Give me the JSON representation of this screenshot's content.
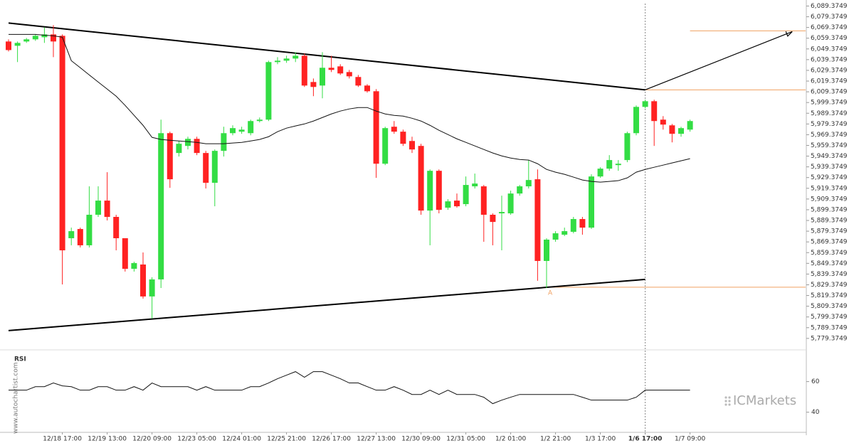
{
  "chart_data": {
    "type": "candlestick",
    "categories": [
      null,
      null,
      null,
      null,
      null,
      null,
      "12/18 17:00",
      null,
      null,
      null,
      null,
      "12/19 13:00",
      null,
      null,
      null,
      null,
      "12/20 09:00",
      null,
      null,
      null,
      null,
      "12/23 05:00",
      null,
      null,
      null,
      null,
      "12/24 01:00",
      null,
      null,
      null,
      null,
      "12/25 21:00",
      null,
      null,
      null,
      null,
      "12/26 17:00",
      null,
      null,
      null,
      null,
      "12/27 13:00",
      null,
      null,
      null,
      null,
      "12/30 09:00",
      null,
      null,
      null,
      null,
      "12/31 05:00",
      null,
      null,
      null,
      null,
      "1/2 01:00",
      null,
      null,
      null,
      null,
      "1/2 21:00",
      null,
      null,
      null,
      null,
      "1/3 17:00",
      null,
      null,
      null,
      null,
      "1/6 17:00",
      null,
      null,
      null,
      null,
      "1/7 09:00"
    ],
    "open": [
      6056.3,
      6052.3,
      6056.3,
      6058.3,
      6060.3,
      6062.9,
      6061.6,
      5872.8,
      5881.4,
      5866.2,
      5894.7,
      5907.9,
      5892.7,
      5872.8,
      5844.3,
      5848.3,
      5818.5,
      5834.4,
      5970.8,
      5952.3,
      5958.9,
      5965.5,
      5952.3,
      5924.5,
      5954.3,
      5970.8,
      5972.2,
      5970.8,
      5982.1,
      5983.4,
      6037.1,
      6038.4,
      6040.4,
      6043.0,
      6018.5,
      6015.2,
      6031.8,
      6033.1,
      6027.8,
      6023.2,
      6015.2,
      6009.9,
      5942.3,
      5976.8,
      5972.2,
      5963.5,
      5958.9,
      5898.6,
      5935.7,
      5901.3,
      5907.9,
      5904.6,
      5921.2,
      5921.2,
      5894.7,
      5896.0,
      5896.0,
      5914.5,
      5921.2,
      5927.8,
      5851.6,
      5871.5,
      5876.1,
      5878.8,
      5890.7,
      5882.7,
      5930.4,
      5937.7,
      5941.0,
      5945.7,
      5970.8,
      5995.3,
      6000.6,
      5983.4,
      5978.1,
      5970.2,
      5974.1
    ],
    "high": [
      6058.3,
      6056.3,
      6059.6,
      6062.9,
      6069.5,
      6071.5,
      6062.9,
      5882.7,
      5882.7,
      5921.2,
      5921.2,
      5934.4,
      5894.7,
      5872.8,
      5850.9,
      5859.5,
      5836.4,
      5983.4,
      5972.2,
      5963.5,
      5967.5,
      5967.5,
      5954.3,
      5955.6,
      5976.8,
      5978.1,
      5976.8,
      5983.4,
      5985.4,
      6038.4,
      6041.7,
      6043.0,
      6046.3,
      6045.0,
      6021.8,
      6046.3,
      6043.0,
      6035.1,
      6029.8,
      6025.1,
      6016.5,
      6011.9,
      5976.8,
      5982.1,
      5974.1,
      5967.5,
      5960.9,
      5937.0,
      5937.0,
      5909.2,
      5914.5,
      5930.4,
      5933.1,
      5922.5,
      5896.0,
      5912.5,
      5917.2,
      5922.5,
      5945.7,
      5937.0,
      5872.8,
      5879.4,
      5882.7,
      5892.7,
      5892.7,
      5932.4,
      5939.0,
      5950.3,
      5945.7,
      5972.2,
      5996.7,
      6002.0,
      6002.0,
      5986.7,
      5979.4,
      5976.8,
      5983.4
    ],
    "low": [
      6047.0,
      6037.1,
      6055.0,
      6056.9,
      6055.0,
      6041.7,
      5829.7,
      5866.2,
      5864.2,
      5864.2,
      5892.7,
      5889.4,
      5861.5,
      5841.7,
      5841.7,
      5816.5,
      5797.9,
      5826.4,
      5919.8,
      5949.0,
      5955.6,
      5950.3,
      5919.2,
      5902.6,
      5949.0,
      5968.8,
      5970.2,
      5968.8,
      5980.8,
      5982.1,
      6035.1,
      6036.4,
      6037.1,
      6013.9,
      6005.3,
      6003.3,
      6027.8,
      6025.1,
      6021.8,
      6013.9,
      6008.6,
      5929.1,
      5941.0,
      5970.2,
      5958.9,
      5952.3,
      5894.7,
      5866.2,
      5896.0,
      5899.3,
      5901.3,
      5902.6,
      5919.2,
      5869.5,
      5866.2,
      5861.5,
      5894.7,
      5912.5,
      5919.2,
      5833.1,
      5826.4,
      5869.5,
      5874.8,
      5877.4,
      5876.1,
      5881.4,
      5929.1,
      5935.7,
      5935.7,
      5943.7,
      5968.8,
      5994.0,
      5958.9,
      5974.1,
      5962.2,
      5967.5,
      5972.2
    ],
    "close": [
      6048.3,
      6055.0,
      6058.3,
      6061.6,
      6062.9,
      6056.3,
      5861.5,
      5879.4,
      5866.2,
      5894.7,
      5907.9,
      5892.7,
      5872.8,
      5844.3,
      5849.6,
      5818.5,
      5834.4,
      5970.8,
      5927.8,
      5960.9,
      5965.5,
      5952.3,
      5924.5,
      5954.3,
      5970.8,
      5975.5,
      5974.1,
      5982.1,
      5983.4,
      6037.1,
      6038.4,
      6040.4,
      6043.0,
      6015.2,
      6013.9,
      6031.8,
      6029.8,
      6026.5,
      6023.8,
      6015.2,
      6009.9,
      5942.3,
      5975.5,
      5972.2,
      5960.9,
      5955.6,
      5898.6,
      5935.7,
      5899.3,
      5907.2,
      5902.6,
      5922.5,
      5923.8,
      5894.7,
      5888.0,
      5897.3,
      5914.5,
      5921.2,
      5927.1,
      5851.6,
      5871.5,
      5877.4,
      5879.4,
      5890.7,
      5882.7,
      5930.4,
      5937.7,
      5945.7,
      5942.3,
      5970.8,
      5995.3,
      6000.6,
      5982.1,
      5978.8,
      5970.2,
      5975.5,
      5982.1
    ],
    "up_color": "#33dd44",
    "down_color": "#ff2222",
    "ma": {
      "color": "#111111",
      "values": [
        6062.9,
        6062.9,
        6062.9,
        6062.9,
        6062.2,
        6061.6,
        6060.3,
        6038.4,
        6031.8,
        6025.1,
        6018.5,
        6011.9,
        6005.3,
        5996.7,
        5987.4,
        5978.1,
        5966.9,
        5964.9,
        5964.2,
        5963.5,
        5962.9,
        5962.2,
        5960.9,
        5960.9,
        5960.9,
        5961.6,
        5962.2,
        5963.5,
        5964.9,
        5967.5,
        5972.2,
        5975.5,
        5977.5,
        5979.4,
        5982.1,
        5985.4,
        5988.7,
        5991.4,
        5993.4,
        5994.7,
        5994.7,
        5991.4,
        5988.7,
        5987.4,
        5986.7,
        5984.7,
        5982.1,
        5978.1,
        5973.5,
        5969.5,
        5965.5,
        5962.2,
        5958.9,
        5955.6,
        5952.3,
        5949.6,
        5947.6,
        5946.3,
        5945.7,
        5942.3,
        5937.0,
        5934.4,
        5932.4,
        5929.8,
        5927.1,
        5925.8,
        5925.1,
        5925.8,
        5926.5,
        5929.1,
        5934.4,
        5937.0,
        5939.0,
        5941.0,
        5943.0,
        5945.0,
        5947.0
      ]
    },
    "ylim": [
      5770,
      6095
    ],
    "yticks": [
      {
        "value": 6089.3749,
        "label": "6,089.3749"
      },
      {
        "value": 6079.3749,
        "label": "6,079.3749"
      },
      {
        "value": 6069.3749,
        "label": "6,069.3749"
      },
      {
        "value": 6059.3749,
        "label": "6,059.3749"
      },
      {
        "value": 6049.3749,
        "label": "6,049.3749"
      },
      {
        "value": 6039.3749,
        "label": "6,039.3749"
      },
      {
        "value": 6029.3749,
        "label": "6,029.3749"
      },
      {
        "value": 6019.3749,
        "label": "6,019.3749"
      },
      {
        "value": 6009.3749,
        "label": "6,009.3749"
      },
      {
        "value": 5999.3749,
        "label": "5,999.3749"
      },
      {
        "value": 5989.3749,
        "label": "5,989.3749"
      },
      {
        "value": 5979.3749,
        "label": "5,979.3749"
      },
      {
        "value": 5969.3749,
        "label": "5,969.3749"
      },
      {
        "value": 5959.3749,
        "label": "5,959.3749"
      },
      {
        "value": 5949.3749,
        "label": "5,949.3749"
      },
      {
        "value": 5939.3749,
        "label": "5,939.3749"
      },
      {
        "value": 5929.3749,
        "label": "5,929.3749"
      },
      {
        "value": 5919.3749,
        "label": "5,919.3749"
      },
      {
        "value": 5909.3749,
        "label": "5,909.3749"
      },
      {
        "value": 5899.3749,
        "label": "5,899.3749"
      },
      {
        "value": 5889.3749,
        "label": "5,889.3749"
      },
      {
        "value": 5879.3749,
        "label": "5,879.3749"
      },
      {
        "value": 5869.3749,
        "label": "5,869.3749"
      },
      {
        "value": 5859.3749,
        "label": "5,859.3749"
      },
      {
        "value": 5849.3749,
        "label": "5,849.3749"
      },
      {
        "value": 5839.3749,
        "label": "5,839.3749"
      },
      {
        "value": 5829.3749,
        "label": "5,829.3749"
      },
      {
        "value": 5819.3749,
        "label": "5,819.3749"
      },
      {
        "value": 5809.3749,
        "label": "5,809.3749"
      },
      {
        "value": 5799.3749,
        "label": "5,799.3749"
      },
      {
        "value": 5789.3749,
        "label": "5,789.3749"
      },
      {
        "value": 5779.3749,
        "label": "5,779.3749"
      }
    ],
    "grid": false,
    "trendlines": [
      {
        "from": [
          0,
          6073.5
        ],
        "to": [
          71,
          6011.2
        ]
      },
      {
        "from": [
          0,
          5786.7
        ],
        "to": [
          71,
          5834.4
        ]
      }
    ],
    "arrow": {
      "from": [
        71,
        6011.2
      ],
      "to": [
        87.4,
        6065.5
      ]
    },
    "level_color": "#f0a060",
    "levels": [
      {
        "value": 6066.2,
        "start": 76
      },
      {
        "value": 6011.2,
        "start": 71
      },
      {
        "value": 5827.1,
        "start": 60.4
      }
    ],
    "annotation": {
      "text": "A",
      "index": 60.4,
      "value": 5821.8
    },
    "current_index": 71,
    "rsi": {
      "label": "RSI",
      "color": "#111111",
      "ylim": [
        25,
        77
      ],
      "yticks": [
        40,
        60
      ],
      "values": [
        54.4,
        54.4,
        54.4,
        56.7,
        56.7,
        59.1,
        57.2,
        56.7,
        54.4,
        54.4,
        56.7,
        56.7,
        54.4,
        54.4,
        56.7,
        54.4,
        59.1,
        56.7,
        56.7,
        56.7,
        56.7,
        54.4,
        56.7,
        54.4,
        54.4,
        54.4,
        54.4,
        56.7,
        56.7,
        59.1,
        61.9,
        64.2,
        66.5,
        62.8,
        66.5,
        66.5,
        64.2,
        61.9,
        59.1,
        59.1,
        56.7,
        54.4,
        54.4,
        56.7,
        54.4,
        51.6,
        51.6,
        54.4,
        51.6,
        54.4,
        51.6,
        51.6,
        51.6,
        49.8,
        45.6,
        47.9,
        49.8,
        51.6,
        51.6,
        51.6,
        51.6,
        51.6,
        51.6,
        51.6,
        49.8,
        47.9,
        47.9,
        47.9,
        47.9,
        47.9,
        49.8,
        54.4,
        54.4,
        54.4,
        54.4,
        54.4,
        54.4
      ]
    },
    "watermark": "www.autochartist.com",
    "logo": "ICMarkets"
  }
}
